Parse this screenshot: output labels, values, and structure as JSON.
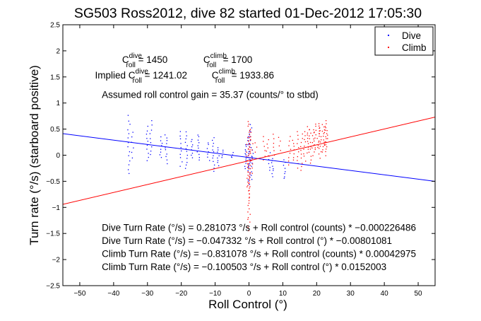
{
  "chart_data": {
    "type": "scatter",
    "title": "SG503 Ross2012, dive 82 started 01-Dec-2012 17:05:30",
    "xlabel": "Roll Control (°)",
    "ylabel": "Turn rate (°/s) (starboard positive)",
    "xlim": [
      -55,
      55
    ],
    "ylim": [
      -2.5,
      2.5
    ],
    "xticks": [
      -50,
      -40,
      -30,
      -20,
      -10,
      0,
      10,
      20,
      30,
      40,
      50
    ],
    "yticks": [
      -2.5,
      -2,
      -1.5,
      -1,
      -0.5,
      0,
      0.5,
      1,
      1.5,
      2,
      2.5
    ],
    "xtick_labels": [
      "−50",
      "−40",
      "−30",
      "−20",
      "−10",
      "0",
      "10",
      "20",
      "30",
      "40",
      "50"
    ],
    "ytick_labels": [
      "−2.5",
      "−2",
      "−1.5",
      "−1",
      "−0.5",
      "0",
      "0.5",
      "1",
      "1.5",
      "2",
      "2.5"
    ],
    "grid": false,
    "legend_position": "top-right",
    "colors": {
      "dive": "#0000ff",
      "climb": "#ff0000",
      "axes": "#000000"
    },
    "series": [
      {
        "name": "Dive",
        "color": "#0000ff",
        "mode": "markers",
        "clusters": [
          {
            "x": -35.5,
            "y_min": -0.35,
            "y_max": 0.75,
            "count": 14
          },
          {
            "x": -34.5,
            "y_min": -0.05,
            "y_max": 0.45,
            "count": 6
          },
          {
            "x": -30.0,
            "y_min": -0.1,
            "y_max": 0.55,
            "count": 10
          },
          {
            "x": -29.0,
            "y_min": 0.0,
            "y_max": 0.65,
            "count": 9
          },
          {
            "x": -26.0,
            "y_min": -0.05,
            "y_max": 0.35,
            "count": 8
          },
          {
            "x": -24.5,
            "y_min": -0.15,
            "y_max": 0.4,
            "count": 10
          },
          {
            "x": -20.0,
            "y_min": -0.2,
            "y_max": 0.45,
            "count": 10
          },
          {
            "x": -18.5,
            "y_min": -0.25,
            "y_max": 0.45,
            "count": 12
          },
          {
            "x": -17.0,
            "y_min": -0.05,
            "y_max": 0.3,
            "count": 8
          },
          {
            "x": -15.0,
            "y_min": -0.1,
            "y_max": 0.4,
            "count": 10
          },
          {
            "x": -12.0,
            "y_min": -0.1,
            "y_max": 0.25,
            "count": 7
          },
          {
            "x": -10.5,
            "y_min": -0.3,
            "y_max": 0.35,
            "count": 12
          },
          {
            "x": -9.0,
            "y_min": -0.2,
            "y_max": 0.15,
            "count": 8
          },
          {
            "x": -8.0,
            "y_min": -0.05,
            "y_max": 0.1,
            "count": 4
          },
          {
            "x": -5.0,
            "y_min": -0.05,
            "y_max": 0.05,
            "count": 4
          },
          {
            "x": -1.0,
            "y_min": -0.25,
            "y_max": 0.2,
            "count": 12
          },
          {
            "x": 0.0,
            "y_min": -0.5,
            "y_max": 0.45,
            "count": 24
          },
          {
            "x": 0.5,
            "y_min": -0.55,
            "y_max": 0.6,
            "count": 16
          },
          {
            "x": 1.0,
            "y_min": -0.2,
            "y_max": 0.1,
            "count": 6
          },
          {
            "x": 6.0,
            "y_min": -0.3,
            "y_max": 0.05,
            "count": 6
          },
          {
            "x": 7.0,
            "y_min": -0.4,
            "y_max": -0.05,
            "count": 8
          },
          {
            "x": 10.5,
            "y_min": -0.45,
            "y_max": -0.1,
            "count": 8
          }
        ]
      },
      {
        "name": "Climb",
        "color": "#ff0000",
        "mode": "markers",
        "clusters": [
          {
            "x": -0.5,
            "y_min": -0.6,
            "y_max": 0.35,
            "count": 14
          },
          {
            "x": 0.0,
            "y_min": -1.45,
            "y_max": 0.65,
            "count": 40
          },
          {
            "x": 0.3,
            "y_min": -0.8,
            "y_max": 0.5,
            "count": 20
          },
          {
            "x": 0.8,
            "y_min": -0.35,
            "y_max": 0.3,
            "count": 8
          },
          {
            "x": 2.0,
            "y_min": 0.05,
            "y_max": 0.25,
            "count": 3
          },
          {
            "x": 4.5,
            "y_min": -0.1,
            "y_max": 0.35,
            "count": 6
          },
          {
            "x": 5.5,
            "y_min": 0.0,
            "y_max": 0.3,
            "count": 5
          },
          {
            "x": 7.5,
            "y_min": 0.0,
            "y_max": 0.4,
            "count": 6
          },
          {
            "x": 9.0,
            "y_min": 0.1,
            "y_max": 0.35,
            "count": 4
          },
          {
            "x": 12.0,
            "y_min": -0.2,
            "y_max": 0.35,
            "count": 8
          },
          {
            "x": 13.0,
            "y_min": -0.1,
            "y_max": 0.3,
            "count": 7
          },
          {
            "x": 14.5,
            "y_min": -0.25,
            "y_max": 0.45,
            "count": 10
          },
          {
            "x": 15.5,
            "y_min": -0.3,
            "y_max": 0.4,
            "count": 10
          },
          {
            "x": 16.5,
            "y_min": -0.1,
            "y_max": 0.45,
            "count": 9
          },
          {
            "x": 17.5,
            "y_min": 0.05,
            "y_max": 0.55,
            "count": 10
          },
          {
            "x": 18.0,
            "y_min": -0.15,
            "y_max": 0.5,
            "count": 11
          },
          {
            "x": 19.0,
            "y_min": 0.0,
            "y_max": 0.5,
            "count": 9
          },
          {
            "x": 19.5,
            "y_min": 0.1,
            "y_max": 0.6,
            "count": 10
          },
          {
            "x": 20.5,
            "y_min": 0.15,
            "y_max": 0.55,
            "count": 10
          },
          {
            "x": 21.0,
            "y_min": -0.05,
            "y_max": 0.6,
            "count": 12
          },
          {
            "x": 22.0,
            "y_min": 0.05,
            "y_max": 0.6,
            "count": 12
          },
          {
            "x": 22.5,
            "y_min": 0.0,
            "y_max": 0.55,
            "count": 10
          },
          {
            "x": 23.0,
            "y_min": 0.15,
            "y_max": 0.65,
            "count": 10
          }
        ]
      },
      {
        "mode": "line",
        "color": "#0000ff",
        "x": [
          -55,
          55
        ],
        "y": [
          0.4136,
          -0.5006
        ]
      },
      {
        "mode": "line",
        "color": "#ff0000",
        "x": [
          -55,
          55
        ],
        "y": [
          -0.9417,
          0.7304
        ]
      }
    ],
    "annotations": [
      {
        "text": "Implied C",
        "sup": "dive",
        "sub": "roll",
        "text_after": " = 1241.02",
        "x": -45.5,
        "y": 1.47
      },
      {
        "text": "C",
        "sup": "climb",
        "sub": "roll",
        "text_after": " = 1933.86",
        "x": -11,
        "y": 1.47
      },
      {
        "text": "C",
        "sup": "dive",
        "sub": "roll",
        "text_after": " = 1450",
        "x": -37.5,
        "y": 1.77
      },
      {
        "text": "C",
        "sup": "climb",
        "sub": "roll",
        "text_after": " = 1700",
        "x": -13.5,
        "y": 1.77
      },
      {
        "text": "Assumed roll control gain = 35.37 (counts/° to stbd)",
        "x": -43.5,
        "y": 1.1
      },
      {
        "text": "Dive Turn Rate (°/s) = 0.281073 °/s + Roll control (counts) * −0.000226486",
        "x": -43.5,
        "y": -1.45
      },
      {
        "text": "Dive Turn Rate (°/s) = −0.047332 °/s + Roll control (°) * −0.00801081",
        "x": -43.5,
        "y": -1.7
      },
      {
        "text": "Climb Turn Rate (°/s) = −0.831078 °/s + Roll control (counts) * 0.00042975",
        "x": -43.5,
        "y": -1.95
      },
      {
        "text": "Climb Turn Rate (°/s) = −0.100503 °/s + Roll control (°) * 0.0152003",
        "x": -43.5,
        "y": -2.2
      }
    ]
  }
}
